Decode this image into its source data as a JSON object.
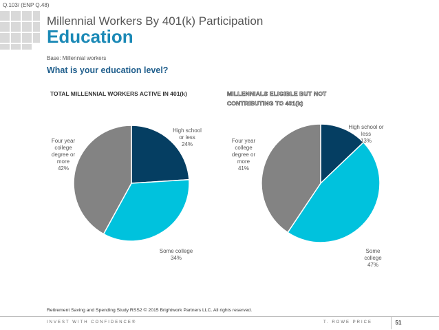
{
  "header": {
    "question_ref": "Q.103/ (ENP Q.48)",
    "heading": "Millennial Workers By 401(k) Participation",
    "title": "Education",
    "base": "Base: Millennial workers",
    "question": "What is your education level?"
  },
  "chart_data": [
    {
      "type": "pie",
      "title": "TOTAL MILLENNIAL WORKERS ACTIVE IN 401(k)",
      "slices": [
        {
          "label": "High school or less",
          "value": 24,
          "pct_text": "24%",
          "color": "#053e62"
        },
        {
          "label": "Some college",
          "value": 34,
          "pct_text": "34%",
          "color": "#00c2dd"
        },
        {
          "label": "Four year college degree or more",
          "value": 42,
          "pct_text": "42%",
          "color": "#838383"
        }
      ]
    },
    {
      "type": "pie",
      "title": "MILLENNIALS ELIGIBLE BUT NOT CONTRIBUTING TO 401(k)",
      "slices": [
        {
          "label": "High school or less",
          "value": 13,
          "pct_text": "13%",
          "color": "#053e62"
        },
        {
          "label": "Some college",
          "value": 47,
          "pct_text": "47%",
          "color": "#00c2dd"
        },
        {
          "label": "Four year college degree or more",
          "value": 41,
          "pct_text": "41%",
          "color": "#838383"
        }
      ]
    }
  ],
  "footer": {
    "source": "Retirement Saving and Spending Study RSS2 © 2015 Brightwork Partners LLC. All rights reserved.",
    "tagline": "INVEST WITH CONFIDENCE®",
    "brand": "T. ROWE PRICE",
    "page_number": "51"
  }
}
